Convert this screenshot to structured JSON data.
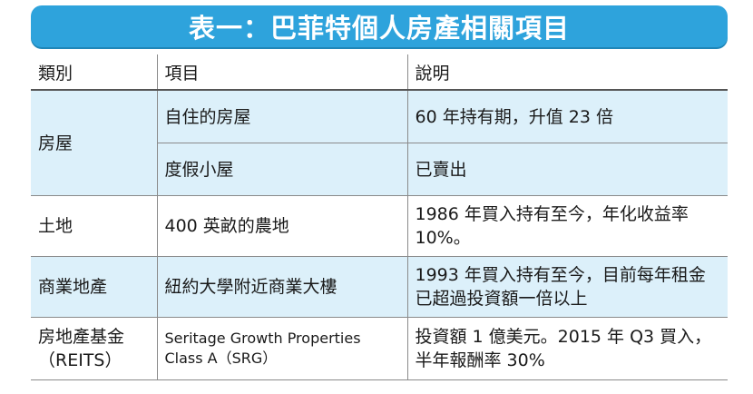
{
  "title": "表一：巴菲特個人房產相關項目",
  "columns": [
    "類別",
    "項目",
    "說明"
  ],
  "rows": {
    "r1": {
      "category": "房屋",
      "item": "自住的房屋",
      "desc": "60 年持有期，升值 23 倍"
    },
    "r2": {
      "item": "度假小屋",
      "desc": "已賣出"
    },
    "r3": {
      "category": "土地",
      "item": "400 英畝的農地",
      "desc": "1986 年買入持有至今，年化收益率 10%。"
    },
    "r4": {
      "category": "商業地產",
      "item": "紐約大學附近商業大樓",
      "desc": "1993 年買入持有至今，目前每年租金已超過投資額一倍以上"
    },
    "r5": {
      "category": "房地產基金（REITS）",
      "item": "Seritage Growth Properties Class A（SRG）",
      "desc": "投資額 1 億美元。2015 年 Q3 買入，半年報酬率 30%"
    }
  },
  "colors": {
    "title_bg": "#2ea3dc",
    "row_tint": "#dcf0fa"
  }
}
